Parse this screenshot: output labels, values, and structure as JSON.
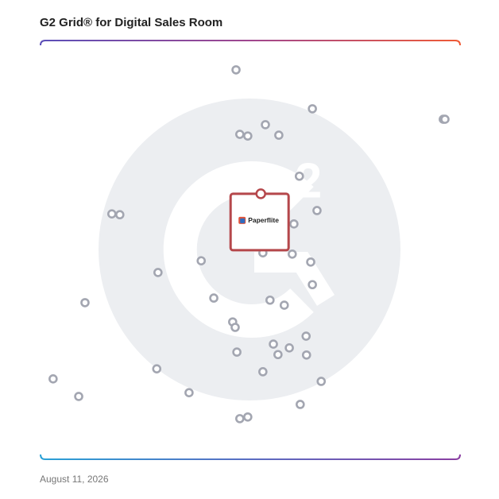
{
  "chart_data": {
    "type": "scatter",
    "title": "G2 Grid® for Digital Sales Room",
    "footer": "August 11, 2026",
    "xlim": [
      0,
      100
    ],
    "ylim": [
      0,
      100
    ],
    "series": [
      {
        "color": "#a3a6b1",
        "x": [
          46.6,
          64.8,
          96.0,
          96.4,
          53.6,
          47.5,
          49.4,
          56.8,
          61.7,
          17.0,
          18.9,
          65.9,
          60.4,
          53.0,
          60.0,
          38.3,
          64.4,
          28.0,
          64.8,
          10.6,
          41.3,
          54.7,
          58.1,
          45.8,
          46.4,
          63.3,
          55.5,
          59.3,
          56.6,
          63.4,
          46.8,
          27.7,
          53.0,
          3.0,
          66.9,
          35.4,
          9.1,
          61.9,
          47.5,
          49.4
        ],
        "values": [
          93.0,
          83.7,
          81.2,
          81.2,
          79.9,
          77.6,
          77.2,
          77.4,
          67.6,
          58.6,
          58.4,
          59.4,
          56.2,
          49.3,
          49.0,
          47.4,
          47.1,
          44.6,
          41.7,
          37.4,
          38.5,
          38.0,
          36.8,
          32.8,
          31.5,
          29.4,
          27.5,
          26.6,
          25.0,
          24.9,
          25.6,
          21.6,
          20.9,
          19.2,
          18.6,
          15.9,
          15.0,
          13.1,
          9.7,
          10.1
        ]
      },
      {
        "name": "Paperflite",
        "color": "#b5474b",
        "x": [
          52.5
        ],
        "values": [
          63.4
        ]
      }
    ]
  }
}
